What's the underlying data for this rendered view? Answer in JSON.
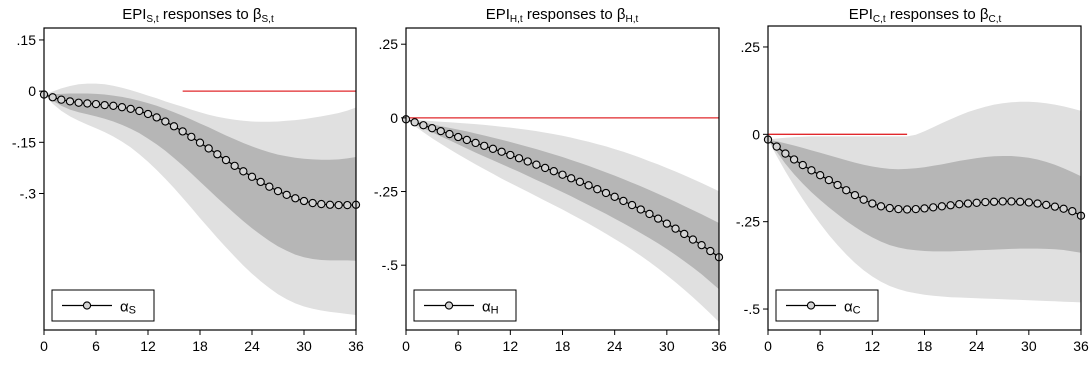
{
  "chart_data": [
    {
      "type": "line",
      "title": {
        "main": "EPI",
        "sub": "S,t",
        "mid": " responses to β",
        "sub2": "S,t"
      },
      "xticks": [
        0,
        6,
        12,
        18,
        24,
        30,
        36
      ],
      "yticks": [
        {
          "value": 0.15,
          "label": ".15"
        },
        {
          "value": 0,
          "label": "0"
        },
        {
          "value": -0.15,
          "label": "-.15"
        },
        {
          "value": -0.3,
          "label": "-.3"
        }
      ],
      "xlim": [
        0,
        36
      ],
      "ylim": [
        -0.7,
        0.185
      ],
      "zero_line": {
        "from": 16,
        "to": 36
      },
      "legend": {
        "symbol": "α",
        "sub": "S"
      },
      "series": [
        {
          "x": [
            0,
            1,
            2,
            3,
            4,
            5,
            6,
            7,
            8,
            9,
            10,
            11,
            12,
            13,
            14,
            15,
            16,
            17,
            18,
            19,
            20,
            21,
            22,
            23,
            24,
            25,
            26,
            27,
            28,
            29,
            30,
            31,
            32,
            33,
            34,
            35,
            36
          ],
          "values": [
            -0.01,
            -0.018,
            -0.025,
            -0.03,
            -0.034,
            -0.036,
            -0.038,
            -0.041,
            -0.043,
            -0.047,
            -0.052,
            -0.058,
            -0.067,
            -0.077,
            -0.089,
            -0.103,
            -0.118,
            -0.134,
            -0.151,
            -0.168,
            -0.185,
            -0.202,
            -0.219,
            -0.235,
            -0.251,
            -0.266,
            -0.28,
            -0.293,
            -0.304,
            -0.314,
            -0.322,
            -0.328,
            -0.331,
            -0.333,
            -0.334,
            -0.334,
            -0.333
          ]
        }
      ],
      "bands": {
        "outer_upper": [
          -0.01,
          -0.001,
          0.008,
          0.015,
          0.02,
          0.022,
          0.022,
          0.02,
          0.016,
          0.01,
          0.003,
          -0.005,
          -0.013,
          -0.021,
          -0.03,
          -0.038,
          -0.046,
          -0.054,
          -0.062,
          -0.069,
          -0.075,
          -0.08,
          -0.084,
          -0.087,
          -0.089,
          -0.09,
          -0.09,
          -0.089,
          -0.087,
          -0.085,
          -0.082,
          -0.078,
          -0.074,
          -0.069,
          -0.064,
          -0.057,
          -0.048
        ],
        "inner_upper": [
          -0.01,
          -0.009,
          -0.008,
          -0.007,
          -0.007,
          -0.007,
          -0.008,
          -0.01,
          -0.013,
          -0.017,
          -0.022,
          -0.028,
          -0.035,
          -0.043,
          -0.052,
          -0.062,
          -0.072,
          -0.083,
          -0.095,
          -0.106,
          -0.118,
          -0.13,
          -0.141,
          -0.152,
          -0.162,
          -0.171,
          -0.179,
          -0.186,
          -0.191,
          -0.195,
          -0.198,
          -0.2,
          -0.201,
          -0.201,
          -0.2,
          -0.197,
          -0.193
        ],
        "inner_lower": [
          -0.01,
          -0.028,
          -0.043,
          -0.054,
          -0.062,
          -0.068,
          -0.074,
          -0.081,
          -0.089,
          -0.099,
          -0.11,
          -0.123,
          -0.139,
          -0.156,
          -0.175,
          -0.196,
          -0.218,
          -0.241,
          -0.265,
          -0.289,
          -0.313,
          -0.336,
          -0.359,
          -0.381,
          -0.402,
          -0.421,
          -0.439,
          -0.455,
          -0.468,
          -0.479,
          -0.487,
          -0.492,
          -0.495,
          -0.496,
          -0.496,
          -0.496,
          -0.497
        ],
        "outer_lower": [
          -0.01,
          -0.037,
          -0.058,
          -0.074,
          -0.087,
          -0.098,
          -0.109,
          -0.12,
          -0.133,
          -0.148,
          -0.165,
          -0.185,
          -0.207,
          -0.231,
          -0.257,
          -0.284,
          -0.313,
          -0.342,
          -0.372,
          -0.401,
          -0.43,
          -0.458,
          -0.485,
          -0.511,
          -0.535,
          -0.557,
          -0.577,
          -0.595,
          -0.61,
          -0.622,
          -0.631,
          -0.638,
          -0.643,
          -0.647,
          -0.65,
          -0.653,
          -0.656
        ]
      }
    },
    {
      "type": "line",
      "title": {
        "main": "EPI",
        "sub": "H,t",
        "mid": " responses to β",
        "sub2": "H,t"
      },
      "xticks": [
        0,
        6,
        12,
        18,
        24,
        30,
        36
      ],
      "yticks": [
        {
          "value": 0.25,
          "label": ".25"
        },
        {
          "value": 0,
          "label": "0"
        },
        {
          "value": -0.25,
          "label": "-.25"
        },
        {
          "value": -0.5,
          "label": "-.5"
        }
      ],
      "xlim": [
        0,
        36
      ],
      "ylim": [
        -0.72,
        0.305
      ],
      "zero_line": {
        "from": 0,
        "to": 36
      },
      "legend": {
        "symbol": "α",
        "sub": "H"
      },
      "series": [
        {
          "x": [
            0,
            1,
            2,
            3,
            4,
            5,
            6,
            7,
            8,
            9,
            10,
            11,
            12,
            13,
            14,
            15,
            16,
            17,
            18,
            19,
            20,
            21,
            22,
            23,
            24,
            25,
            26,
            27,
            28,
            29,
            30,
            31,
            32,
            33,
            34,
            35,
            36
          ],
          "values": [
            -0.005,
            -0.015,
            -0.025,
            -0.035,
            -0.045,
            -0.055,
            -0.065,
            -0.075,
            -0.085,
            -0.095,
            -0.105,
            -0.115,
            -0.126,
            -0.137,
            -0.148,
            -0.159,
            -0.17,
            -0.181,
            -0.193,
            -0.205,
            -0.217,
            -0.229,
            -0.242,
            -0.255,
            -0.268,
            -0.282,
            -0.296,
            -0.311,
            -0.326,
            -0.342,
            -0.359,
            -0.376,
            -0.394,
            -0.413,
            -0.432,
            -0.452,
            -0.473
          ]
        }
      ],
      "bands": {
        "outer_upper": [
          -0.005,
          -0.007,
          -0.009,
          -0.011,
          -0.013,
          -0.015,
          -0.017,
          -0.019,
          -0.021,
          -0.024,
          -0.027,
          -0.03,
          -0.033,
          -0.037,
          -0.041,
          -0.045,
          -0.05,
          -0.055,
          -0.061,
          -0.067,
          -0.074,
          -0.081,
          -0.089,
          -0.097,
          -0.106,
          -0.115,
          -0.125,
          -0.136,
          -0.147,
          -0.158,
          -0.17,
          -0.182,
          -0.195,
          -0.208,
          -0.221,
          -0.235,
          -0.249
        ],
        "inner_upper": [
          -0.005,
          -0.01,
          -0.016,
          -0.022,
          -0.028,
          -0.034,
          -0.04,
          -0.046,
          -0.053,
          -0.06,
          -0.067,
          -0.074,
          -0.082,
          -0.09,
          -0.098,
          -0.106,
          -0.115,
          -0.124,
          -0.133,
          -0.143,
          -0.153,
          -0.163,
          -0.174,
          -0.185,
          -0.196,
          -0.208,
          -0.22,
          -0.232,
          -0.245,
          -0.258,
          -0.271,
          -0.285,
          -0.299,
          -0.313,
          -0.327,
          -0.342,
          -0.357
        ],
        "inner_lower": [
          -0.005,
          -0.02,
          -0.035,
          -0.049,
          -0.063,
          -0.076,
          -0.09,
          -0.104,
          -0.118,
          -0.131,
          -0.144,
          -0.157,
          -0.17,
          -0.183,
          -0.197,
          -0.211,
          -0.224,
          -0.238,
          -0.252,
          -0.266,
          -0.281,
          -0.296,
          -0.311,
          -0.326,
          -0.342,
          -0.358,
          -0.374,
          -0.391,
          -0.408,
          -0.426,
          -0.445,
          -0.465,
          -0.486,
          -0.508,
          -0.531,
          -0.556,
          -0.582
        ],
        "outer_lower": [
          -0.005,
          -0.028,
          -0.049,
          -0.069,
          -0.088,
          -0.106,
          -0.124,
          -0.141,
          -0.158,
          -0.174,
          -0.19,
          -0.206,
          -0.221,
          -0.236,
          -0.251,
          -0.266,
          -0.281,
          -0.296,
          -0.311,
          -0.327,
          -0.343,
          -0.359,
          -0.376,
          -0.393,
          -0.411,
          -0.429,
          -0.448,
          -0.468,
          -0.489,
          -0.511,
          -0.534,
          -0.558,
          -0.583,
          -0.609,
          -0.636,
          -0.664,
          -0.693
        ]
      }
    },
    {
      "type": "line",
      "title": {
        "main": "EPI",
        "sub": "C,t",
        "mid": " responses to β",
        "sub2": "C,t"
      },
      "xticks": [
        0,
        6,
        12,
        18,
        24,
        30,
        36
      ],
      "yticks": [
        {
          "value": 0.25,
          "label": ".25"
        },
        {
          "value": 0,
          "label": "0"
        },
        {
          "value": -0.25,
          "label": "-.25"
        },
        {
          "value": -0.5,
          "label": "-.5"
        }
      ],
      "xlim": [
        0,
        36
      ],
      "ylim": [
        -0.56,
        0.31
      ],
      "zero_line": {
        "from": 0,
        "to": 16
      },
      "legend": {
        "symbol": "α",
        "sub": "C"
      },
      "series": [
        {
          "x": [
            0,
            1,
            2,
            3,
            4,
            5,
            6,
            7,
            8,
            9,
            10,
            11,
            12,
            13,
            14,
            15,
            16,
            17,
            18,
            19,
            20,
            21,
            22,
            23,
            24,
            25,
            26,
            27,
            28,
            29,
            30,
            31,
            32,
            33,
            34,
            35,
            36
          ],
          "values": [
            -0.015,
            -0.035,
            -0.055,
            -0.072,
            -0.088,
            -0.103,
            -0.117,
            -0.131,
            -0.145,
            -0.16,
            -0.174,
            -0.187,
            -0.198,
            -0.206,
            -0.211,
            -0.214,
            -0.215,
            -0.214,
            -0.212,
            -0.209,
            -0.206,
            -0.203,
            -0.2,
            -0.198,
            -0.196,
            -0.194,
            -0.193,
            -0.192,
            -0.192,
            -0.193,
            -0.195,
            -0.198,
            -0.202,
            -0.207,
            -0.213,
            -0.22,
            -0.233
          ]
        }
      ],
      "bands": {
        "outer_upper": [
          -0.015,
          -0.012,
          -0.01,
          -0.008,
          -0.007,
          -0.006,
          -0.006,
          -0.006,
          -0.006,
          -0.006,
          -0.006,
          -0.006,
          -0.006,
          -0.006,
          -0.006,
          -0.006,
          -0.006,
          -0.001,
          0.009,
          0.02,
          0.032,
          0.043,
          0.054,
          0.064,
          0.072,
          0.079,
          0.085,
          0.089,
          0.092,
          0.093,
          0.093,
          0.092,
          0.089,
          0.085,
          0.08,
          0.074,
          0.067
        ],
        "inner_upper": [
          -0.015,
          -0.02,
          -0.026,
          -0.032,
          -0.039,
          -0.046,
          -0.053,
          -0.06,
          -0.067,
          -0.074,
          -0.081,
          -0.087,
          -0.092,
          -0.096,
          -0.099,
          -0.1,
          -0.099,
          -0.097,
          -0.094,
          -0.09,
          -0.086,
          -0.081,
          -0.076,
          -0.072,
          -0.068,
          -0.065,
          -0.063,
          -0.062,
          -0.062,
          -0.064,
          -0.067,
          -0.072,
          -0.079,
          -0.087,
          -0.097,
          -0.108,
          -0.12
        ],
        "inner_lower": [
          -0.015,
          -0.05,
          -0.084,
          -0.114,
          -0.141,
          -0.166,
          -0.188,
          -0.209,
          -0.229,
          -0.248,
          -0.265,
          -0.281,
          -0.295,
          -0.307,
          -0.317,
          -0.324,
          -0.329,
          -0.332,
          -0.334,
          -0.335,
          -0.335,
          -0.335,
          -0.334,
          -0.333,
          -0.332,
          -0.331,
          -0.33,
          -0.329,
          -0.328,
          -0.327,
          -0.327,
          -0.327,
          -0.328,
          -0.329,
          -0.331,
          -0.335,
          -0.339
        ],
        "outer_lower": [
          -0.015,
          -0.062,
          -0.106,
          -0.147,
          -0.186,
          -0.222,
          -0.256,
          -0.288,
          -0.317,
          -0.344,
          -0.368,
          -0.389,
          -0.407,
          -0.422,
          -0.434,
          -0.443,
          -0.45,
          -0.455,
          -0.459,
          -0.462,
          -0.464,
          -0.466,
          -0.467,
          -0.468,
          -0.469,
          -0.47,
          -0.471,
          -0.472,
          -0.473,
          -0.474,
          -0.475,
          -0.476,
          -0.477,
          -0.478,
          -0.479,
          -0.48,
          -0.481
        ]
      }
    }
  ],
  "colors": {
    "outer_band": "#e0e0e0",
    "inner_band": "#b6b6b6",
    "line": "#000000",
    "zero_line": "#e0282c",
    "marker_fill": "#d4d4d4",
    "frame": "#000000"
  }
}
